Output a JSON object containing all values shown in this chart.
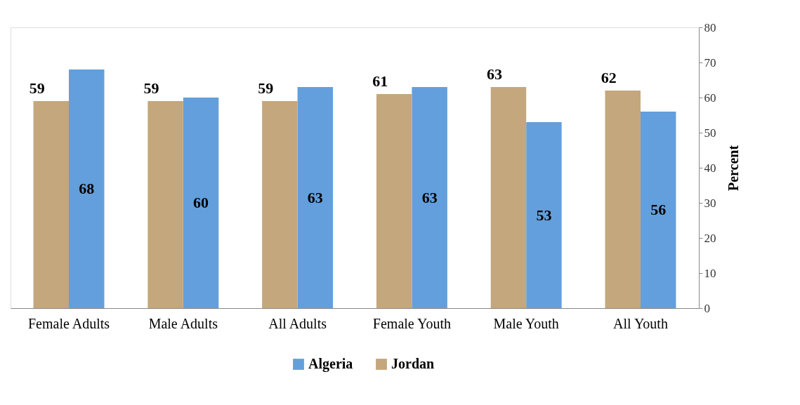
{
  "chart_data": {
    "type": "bar",
    "categories": [
      "Female Adults",
      "Male Adults",
      "All Adults",
      "Female Youth",
      "Male Youth",
      "All Youth"
    ],
    "series": [
      {
        "name": "Algeria",
        "color": "#639fdc",
        "values": [
          68,
          60,
          63,
          63,
          53,
          56
        ]
      },
      {
        "name": "Jordan",
        "color": "#c4a77c",
        "values": [
          59,
          59,
          59,
          61,
          63,
          62
        ]
      }
    ],
    "ylabel": "Percent",
    "ylim": [
      0,
      80
    ],
    "yticks": [
      0,
      10,
      20,
      30,
      40,
      50,
      60,
      70,
      80
    ],
    "data_labels": true,
    "legend": "bottom",
    "grid": false
  }
}
